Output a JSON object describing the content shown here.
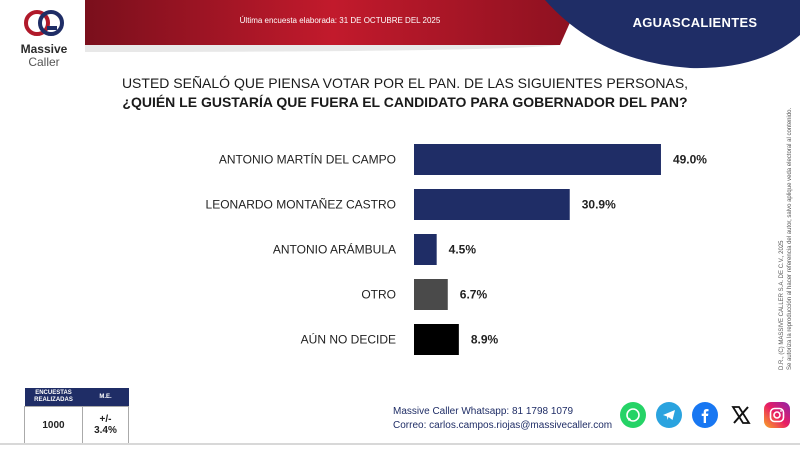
{
  "header": {
    "logo_line1": "Massive",
    "logo_line2": "Caller",
    "survey_date": "Última encuesta elaborada: 31 DE OCTUBRE DEL 2025",
    "region": "AGUASCALIENTES",
    "colors": {
      "red": "#b0192a",
      "navy": "#1f2d66"
    }
  },
  "question": {
    "line1": "USTED SEÑALÓ QUE PIENSA VOTAR POR EL PAN. DE LAS SIGUIENTES PERSONAS,",
    "line2": "¿QUIÉN LE GUSTARÍA QUE FUERA EL CANDIDATO PARA GOBERNADOR DEL PAN?"
  },
  "chart_data": {
    "type": "bar",
    "orientation": "horizontal",
    "title": "¿QUIÉN LE GUSTARÍA QUE FUERA EL CANDIDATO PARA GOBERNADOR DEL PAN?",
    "categories": [
      "ANTONIO MARTÍN DEL CAMPO",
      "LEONARDO MONTAÑEZ CASTRO",
      "ANTONIO ARÁMBULA",
      "OTRO",
      "AÚN NO DECIDE"
    ],
    "values": [
      49.0,
      30.9,
      4.5,
      6.7,
      8.9
    ],
    "labels": [
      "49.0%",
      "30.9%",
      "4.5%",
      "6.7%",
      "8.9%"
    ],
    "colors": [
      "#1f2d66",
      "#1f2d66",
      "#1f2d66",
      "#4a4a4a",
      "#000000"
    ],
    "xlim": [
      0,
      50
    ],
    "unit": "%"
  },
  "side_note": {
    "line1": "D.R., (C) MASSIVE CALLER S.A. DE C.V., 2025",
    "line2": "Se autoriza la reproducción al hacer referencia del autor, salvo aplique veda electoral al contenido."
  },
  "stats": {
    "col1": "ENCUESTAS REALIZADAS",
    "col2": "M.E.",
    "surveys": "1000",
    "margin": "+/- 3.4%"
  },
  "contact": {
    "whatsapp_label": "Massive Caller Whatsapp:",
    "whatsapp": "81 1798 1079",
    "email_label": "Correo:",
    "email": "carlos.campos.riojas@massivecaller.com"
  },
  "social": [
    "whatsapp-icon",
    "telegram-icon",
    "facebook-icon",
    "x-icon",
    "instagram-icon"
  ]
}
